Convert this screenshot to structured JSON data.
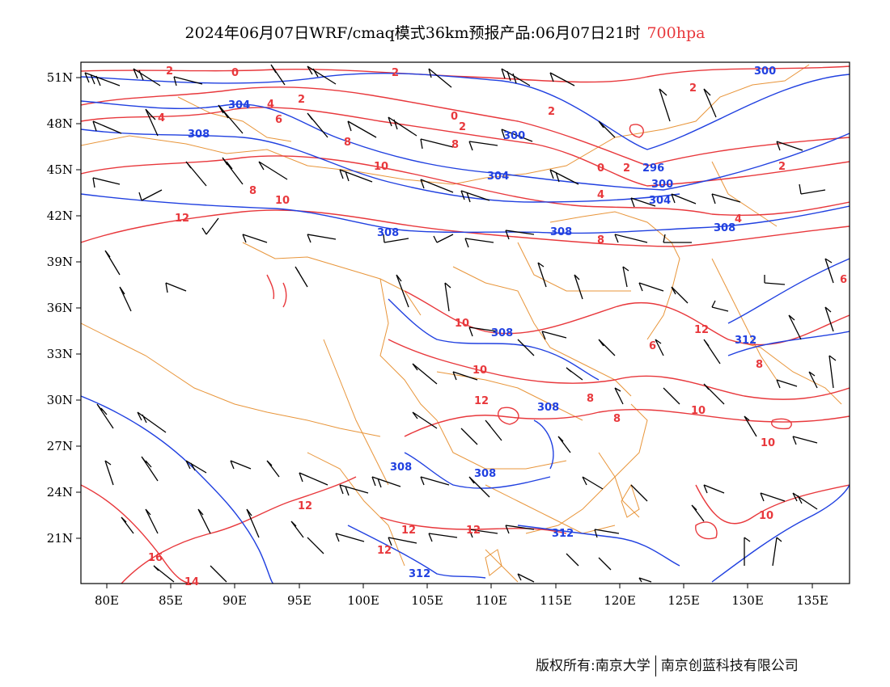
{
  "header": {
    "title": "2024年06月07日WRF/cmaq模式36km预报产品:06月07日21时",
    "level": "700hpa"
  },
  "colors": {
    "temperature": "#e8383c",
    "height": "#2040e0",
    "boundary": "#e8953a",
    "wind": "#000000"
  },
  "axes": {
    "x_ticks": [
      "80E",
      "85E",
      "90E",
      "95E",
      "100E",
      "105E",
      "110E",
      "115E",
      "120E",
      "125E",
      "130E",
      "135E"
    ],
    "y_ticks": [
      "51N",
      "48N",
      "45N",
      "42N",
      "39N",
      "36N",
      "33N",
      "30N",
      "27N",
      "24N",
      "21N"
    ]
  },
  "contour_labels": {
    "temperature": [
      "2",
      "0",
      "2",
      "4",
      "2",
      "2",
      "0",
      "2",
      "2",
      "4",
      "8",
      "8",
      "6",
      "10",
      "8",
      "10",
      "12",
      "0",
      "2",
      "4",
      "8",
      "4",
      "2",
      "10",
      "10",
      "12",
      "12",
      "6",
      "8",
      "8",
      "10",
      "10",
      "6",
      "8",
      "12",
      "12",
      "12",
      "12",
      "16",
      "14",
      "10"
    ],
    "height": [
      "300",
      "304",
      "308",
      "300",
      "304",
      "296",
      "300",
      "304",
      "308",
      "308",
      "308",
      "308",
      "312",
      "308",
      "308",
      "308",
      "312",
      "312"
    ]
  },
  "footer": {
    "left": "版权所有:南京大学",
    "right": "南京创蓝科技有限公司"
  }
}
